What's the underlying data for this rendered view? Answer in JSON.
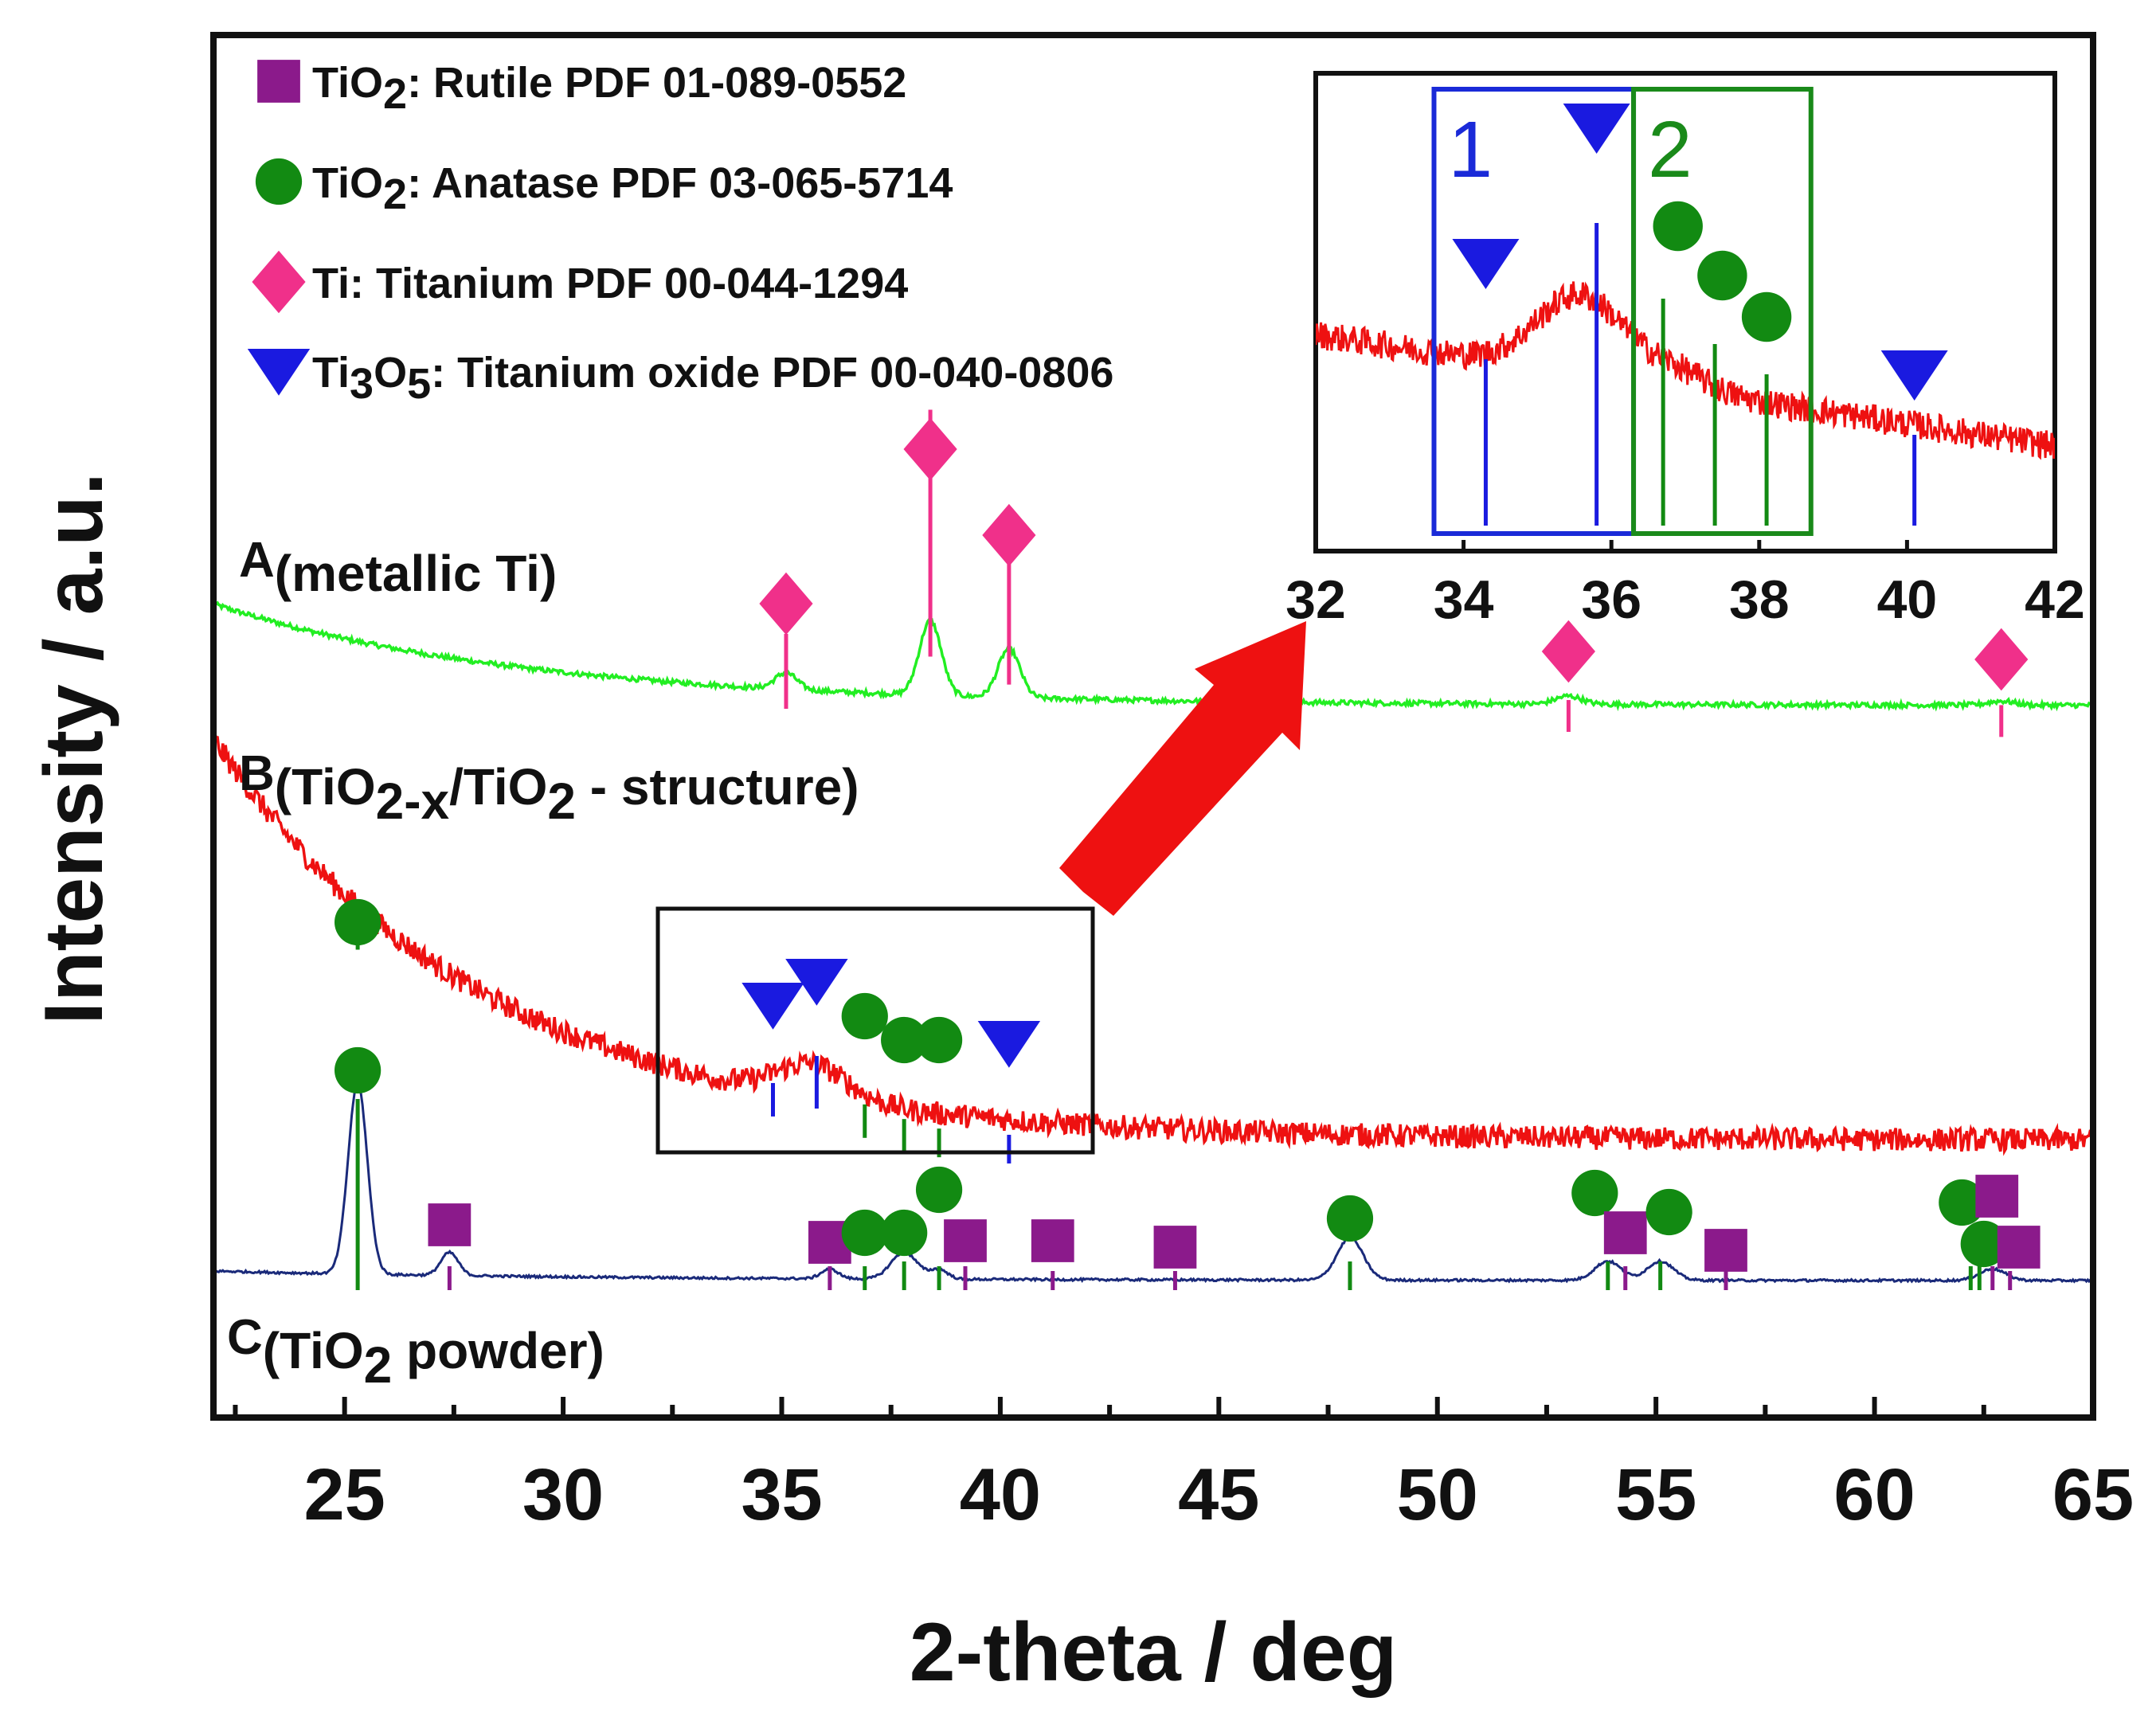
{
  "chart_data": {
    "type": "line",
    "xlabel": "2-theta / deg",
    "ylabel": "Intensity / a.u.",
    "xlim": [
      22,
      65
    ],
    "x_ticks": [
      "25",
      "30",
      "35",
      "40",
      "45",
      "50",
      "55",
      "60",
      "65"
    ],
    "legend": [
      {
        "marker": "square",
        "formula": "TiO",
        "sub": "2",
        "rest": ": Rutile PDF 01-089-0552"
      },
      {
        "marker": "circle",
        "formula": "TiO",
        "sub": "2",
        "rest": ": Anatase PDF 03-065-5714"
      },
      {
        "marker": "diamond",
        "formula": "Ti: Titanium PDF 00-044-1294",
        "sub": "",
        "rest": ""
      },
      {
        "marker": "triangle",
        "formula": "Ti",
        "sub": "3",
        "mid": "O",
        "sub2": "5",
        "rest": ": Titanium oxide PDF 00-040-0806"
      }
    ],
    "series": [
      {
        "id": "A",
        "letter": "A",
        "label": "(metallic Ti)",
        "color": "#22ee22",
        "baseline": {
          "start": 0.88,
          "end": 0.13,
          "decay": 6
        },
        "peaks": [
          {
            "x": 35.1,
            "h": 0.12,
            "w": 0.25
          },
          {
            "x": 38.4,
            "h": 0.55,
            "w": 0.25
          },
          {
            "x": 40.2,
            "h": 0.36,
            "w": 0.25
          },
          {
            "x": 53.0,
            "h": 0.06,
            "w": 0.3
          },
          {
            "x": 62.9,
            "h": 0.03,
            "w": 0.3
          }
        ]
      },
      {
        "id": "B",
        "letter": "B",
        "label_parts": [
          "(TiO",
          "2-x",
          "/TiO",
          "2",
          " - structure)"
        ],
        "color": "#ee1111",
        "baseline": {
          "start": 1.2,
          "end": 0.0,
          "decay": 7
        },
        "peaks": [
          {
            "x": 35.7,
            "h": 0.1,
            "w": 0.8
          }
        ]
      },
      {
        "id": "C",
        "letter": "C",
        "label_parts": [
          "(TiO",
          "2",
          " powder)"
        ],
        "color": "#1a2a7a",
        "baseline": {
          "start": 0.05,
          "end": 0.0,
          "decay": 5
        },
        "peaks": [
          {
            "x": 25.3,
            "h": 1.0,
            "w": 0.22
          },
          {
            "x": 27.4,
            "h": 0.12,
            "w": 0.2
          },
          {
            "x": 36.1,
            "h": 0.05,
            "w": 0.2
          },
          {
            "x": 37.8,
            "h": 0.14,
            "w": 0.3
          },
          {
            "x": 38.6,
            "h": 0.05,
            "w": 0.2
          },
          {
            "x": 48.0,
            "h": 0.22,
            "w": 0.3
          },
          {
            "x": 53.9,
            "h": 0.1,
            "w": 0.3
          },
          {
            "x": 55.1,
            "h": 0.1,
            "w": 0.3
          },
          {
            "x": 62.7,
            "h": 0.06,
            "w": 0.3
          }
        ]
      }
    ],
    "reference_lines": {
      "A": [
        {
          "x": 35.1,
          "phase": "diamond",
          "h": 1.0
        },
        {
          "x": 38.4,
          "phase": "diamond",
          "h": 1.0
        },
        {
          "x": 40.2,
          "phase": "diamond",
          "h": 1.0
        },
        {
          "x": 53.0,
          "phase": "diamond",
          "h": 0.3
        },
        {
          "x": 62.9,
          "phase": "diamond",
          "h": 0.3
        }
      ],
      "B": [
        {
          "x": 25.3,
          "phase": "circle",
          "h": 0.6
        },
        {
          "x": 34.8,
          "phase": "triangle",
          "h": 0.5
        },
        {
          "x": 35.8,
          "phase": "triangle",
          "h": 0.9
        },
        {
          "x": 36.9,
          "phase": "circle",
          "h": 0.5
        },
        {
          "x": 37.8,
          "phase": "circle",
          "h": 0.5
        },
        {
          "x": 38.6,
          "phase": "circle",
          "h": 0.4
        },
        {
          "x": 40.2,
          "phase": "triangle",
          "h": 0.4
        }
      ],
      "C": [
        {
          "x": 25.3,
          "phase": "circle",
          "h": 1.0
        },
        {
          "x": 27.4,
          "phase": "square",
          "h": 0.3
        },
        {
          "x": 36.1,
          "phase": "square",
          "h": 0.3
        },
        {
          "x": 36.9,
          "phase": "circle",
          "h": 0.3
        },
        {
          "x": 37.8,
          "phase": "circle",
          "h": 0.4
        },
        {
          "x": 38.6,
          "phase": "circle",
          "h": 0.3
        },
        {
          "x": 39.2,
          "phase": "square",
          "h": 0.3
        },
        {
          "x": 41.2,
          "phase": "square",
          "h": 0.2
        },
        {
          "x": 44.0,
          "phase": "square",
          "h": 0.2
        },
        {
          "x": 48.0,
          "phase": "circle",
          "h": 0.4
        },
        {
          "x": 53.9,
          "phase": "circle",
          "h": 0.4
        },
        {
          "x": 54.3,
          "phase": "square",
          "h": 0.3
        },
        {
          "x": 55.1,
          "phase": "circle",
          "h": 0.4
        },
        {
          "x": 56.6,
          "phase": "square",
          "h": 0.2
        },
        {
          "x": 62.2,
          "phase": "circle",
          "h": 0.3
        },
        {
          "x": 62.4,
          "phase": "circle",
          "h": 0.3
        },
        {
          "x": 62.7,
          "phase": "square",
          "h": 0.3
        },
        {
          "x": 63.1,
          "phase": "square",
          "h": 0.2
        }
      ]
    },
    "markers": {
      "A": [
        {
          "x": 35.1,
          "phase": "diamond"
        },
        {
          "x": 38.4,
          "phase": "diamond"
        },
        {
          "x": 40.2,
          "phase": "diamond"
        },
        {
          "x": 53.0,
          "phase": "diamond"
        },
        {
          "x": 62.9,
          "phase": "diamond"
        }
      ],
      "B": [
        {
          "x": 25.3,
          "phase": "circle"
        },
        {
          "x": 34.8,
          "phase": "triangle"
        },
        {
          "x": 35.8,
          "phase": "triangle"
        },
        {
          "x": 36.9,
          "phase": "circle"
        },
        {
          "x": 37.8,
          "phase": "circle"
        },
        {
          "x": 38.6,
          "phase": "circle"
        },
        {
          "x": 40.2,
          "phase": "triangle"
        }
      ],
      "C": [
        {
          "x": 25.3,
          "phase": "circle"
        },
        {
          "x": 27.4,
          "phase": "square"
        },
        {
          "x": 36.1,
          "phase": "square"
        },
        {
          "x": 36.9,
          "phase": "circle"
        },
        {
          "x": 37.8,
          "phase": "circle"
        },
        {
          "x": 38.6,
          "phase": "circle"
        },
        {
          "x": 39.2,
          "phase": "square"
        },
        {
          "x": 41.2,
          "phase": "square"
        },
        {
          "x": 44.0,
          "phase": "square"
        },
        {
          "x": 48.0,
          "phase": "circle"
        },
        {
          "x": 53.6,
          "phase": "circle"
        },
        {
          "x": 54.3,
          "phase": "square"
        },
        {
          "x": 55.3,
          "phase": "circle"
        },
        {
          "x": 56.6,
          "phase": "square"
        },
        {
          "x": 62.0,
          "phase": "circle"
        },
        {
          "x": 62.8,
          "phase": "square"
        },
        {
          "x": 62.5,
          "phase": "circle"
        },
        {
          "x": 63.3,
          "phase": "square"
        }
      ]
    },
    "inset": {
      "xlim": [
        32,
        42
      ],
      "x_ticks": [
        "32",
        "34",
        "36",
        "38",
        "40",
        "42"
      ],
      "regions": [
        {
          "label": "1",
          "x0": 33.6,
          "x1": 36.3,
          "color": "#1a2ad8"
        },
        {
          "label": "2",
          "x0": 36.3,
          "x1": 38.7,
          "color": "#1a8a1a"
        }
      ],
      "reference_lines": [
        {
          "x": 34.3,
          "phase": "triangle",
          "h": 0.55
        },
        {
          "x": 35.8,
          "phase": "triangle",
          "h": 1.0
        },
        {
          "x": 36.7,
          "phase": "circle",
          "h": 0.75
        },
        {
          "x": 37.4,
          "phase": "circle",
          "h": 0.6
        },
        {
          "x": 38.1,
          "phase": "circle",
          "h": 0.5
        },
        {
          "x": 40.1,
          "phase": "triangle",
          "h": 0.3
        }
      ],
      "markers": [
        {
          "x": 34.3,
          "phase": "triangle"
        },
        {
          "x": 35.8,
          "phase": "triangle"
        },
        {
          "x": 36.9,
          "phase": "circle"
        },
        {
          "x": 37.5,
          "phase": "circle"
        },
        {
          "x": 38.1,
          "phase": "circle"
        },
        {
          "x": 40.1,
          "phase": "triangle"
        }
      ]
    },
    "colors": {
      "square": "#8b1a8b",
      "circle": "#128a12",
      "diamond": "#f0308a",
      "triangle": "#1a1ae0",
      "arrow": "#ee1111"
    }
  }
}
